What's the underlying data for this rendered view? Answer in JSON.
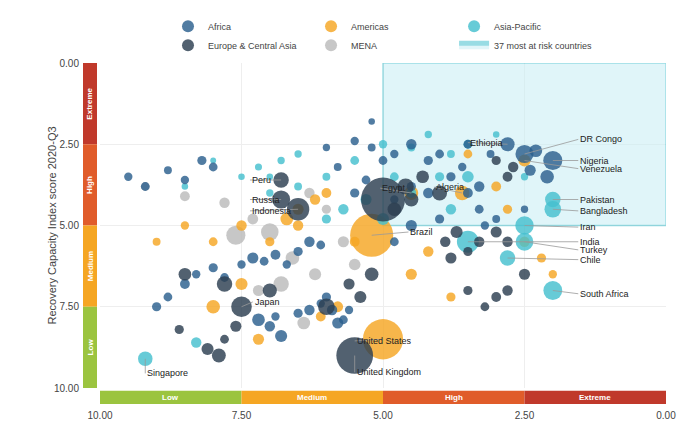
{
  "chart_data": {
    "type": "scatter",
    "ylabel": "Recovery Capacity Index score 2020-Q3",
    "xlim": [
      10.0,
      0.0
    ],
    "ylim": [
      10.0,
      0.0
    ],
    "xticks": [
      {
        "value": 10,
        "label": "10.00"
      },
      {
        "value": 7.5,
        "label": "7.50"
      },
      {
        "value": 5.0,
        "label": "5.00"
      },
      {
        "value": 2.5,
        "label": "2.50"
      },
      {
        "value": 0.0,
        "label": "0.00"
      }
    ],
    "yticks": [
      {
        "value": 0.0,
        "label": "0.00"
      },
      {
        "value": 2.5,
        "label": "2.50"
      },
      {
        "value": 5.0,
        "label": "5.00"
      },
      {
        "value": 7.5,
        "label": "7.50"
      },
      {
        "value": 10.0,
        "label": "10.00"
      }
    ],
    "grid": true,
    "legend": "top",
    "series": [
      {
        "name": "MENA",
        "color": "#BBBBBB",
        "x": [
          7.6,
          7.0,
          6.8,
          6.6,
          6.2,
          6.4,
          7.2,
          6.3,
          6.0,
          5.7,
          5.5,
          9.2,
          8.5,
          7.8,
          7.3
        ],
        "y": [
          5.3,
          5.2,
          6.8,
          6.0,
          6.5,
          8.0,
          7.0,
          4.0,
          4.5,
          5.5,
          6.2,
          3.8,
          4.1,
          4.3,
          4.8
        ],
        "sizes": [
          95,
          80,
          62,
          48,
          38,
          42,
          32,
          28,
          22,
          32,
          35,
          20,
          25,
          28,
          30
        ]
      },
      {
        "name": "Americas",
        "color": "#F5A623",
        "x": [
          5.0,
          5.2,
          6.7,
          6.5,
          6.2,
          6.0,
          7.5,
          7.2,
          8.0,
          6.1,
          5.8,
          2.5,
          3.6,
          4.5,
          3.5,
          4.2,
          3.8,
          4.5,
          5.5,
          6.5,
          7.0,
          7.5,
          8.0,
          8.5,
          9.0,
          3.0,
          2.8,
          2.5,
          2.2,
          2.0
        ],
        "y": [
          8.5,
          5.3,
          4.8,
          4.5,
          4.2,
          4.0,
          6.8,
          8.5,
          7.5,
          7.8,
          7.5,
          3.0,
          4.0,
          4.0,
          2.8,
          5.8,
          7.2,
          6.5,
          5.5,
          5.0,
          5.5,
          5.0,
          5.5,
          5.0,
          5.5,
          3.8,
          4.5,
          5.5,
          6.0,
          6.5
        ],
        "sizes": [
          420,
          480,
          42,
          32,
          28,
          25,
          38,
          32,
          48,
          25,
          30,
          38,
          55,
          50,
          20,
          28,
          22,
          32,
          25,
          28,
          22,
          28,
          20,
          18,
          16,
          25,
          22,
          28,
          22,
          18
        ]
      },
      {
        "name": "Asia-Pacific",
        "color": "#45C0CE",
        "x": [
          9.2,
          8.3,
          2.0,
          2.0,
          2.5,
          3.5,
          2.5,
          2.8,
          2.0,
          3.5,
          3.8,
          4.0,
          4.5,
          4.8,
          5.0,
          5.3,
          5.7,
          6.0,
          6.5,
          7.0,
          7.5,
          8.0,
          8.5,
          7.2,
          6.8,
          3.5,
          3.8,
          4.2,
          4.5,
          5.0,
          5.5,
          6.0,
          6.5,
          7.0,
          3.0,
          2.5
        ],
        "y": [
          9.1,
          8.6,
          4.2,
          4.5,
          5.0,
          5.5,
          5.5,
          6.0,
          7.0,
          3.5,
          4.5,
          3.5,
          4.0,
          3.5,
          4.8,
          4.2,
          4.5,
          4.8,
          3.8,
          4.0,
          3.5,
          3.0,
          3.8,
          3.2,
          3.0,
          2.5,
          2.8,
          2.2,
          2.6,
          2.5,
          3.0,
          3.5,
          2.8,
          3.5,
          2.2,
          3.5
        ],
        "sizes": [
          55,
          28,
          62,
          72,
          88,
          125,
          82,
          62,
          92,
          35,
          28,
          22,
          25,
          20,
          38,
          32,
          28,
          22,
          16,
          14,
          11,
          9,
          11,
          13,
          14,
          20,
          16,
          14,
          16,
          18,
          20,
          16,
          14,
          11,
          11,
          14
        ]
      },
      {
        "name": "Africa",
        "color": "#2B5F8E",
        "x": [
          7.2,
          7.0,
          6.9,
          6.8,
          6.5,
          6.3,
          6.1,
          6.0,
          5.9,
          5.8,
          5.7,
          5.6,
          9.0,
          8.8,
          8.5,
          8.3,
          8.0,
          7.8,
          7.5,
          7.3,
          7.1,
          6.9,
          6.7,
          6.5,
          6.3,
          6.1,
          9.5,
          9.2,
          8.8,
          8.5,
          8.2,
          8.0,
          2.5,
          2.3,
          2.8,
          2.0,
          2.1,
          2.4,
          3.3,
          3.5,
          3.1,
          3.8,
          3.6,
          4.0,
          4.2,
          4.5,
          4.8,
          5.0,
          5.2,
          5.5,
          4.2,
          4.5,
          4.8,
          5.5,
          5.3,
          5.8,
          6.0,
          5.2,
          3.5,
          3.3,
          4.0,
          4.5,
          4.8,
          3.2,
          3.0,
          2.5
        ],
        "y": [
          7.9,
          8.1,
          7.8,
          8.4,
          7.7,
          7.6,
          7.4,
          7.2,
          7.6,
          8.0,
          7.9,
          7.6,
          7.5,
          7.2,
          6.8,
          6.5,
          6.3,
          6.6,
          6.2,
          6.0,
          6.1,
          5.9,
          6.2,
          5.8,
          5.5,
          5.6,
          3.5,
          3.8,
          3.3,
          3.6,
          3.0,
          3.2,
          2.8,
          2.7,
          2.5,
          3.0,
          3.5,
          3.3,
          3.8,
          2.5,
          2.8,
          3.5,
          3.2,
          2.8,
          3.0,
          2.5,
          2.8,
          3.0,
          2.6,
          2.4,
          4.0,
          3.8,
          4.2,
          4.0,
          3.6,
          3.2,
          2.6,
          1.8,
          4.0,
          4.5,
          4.8,
          5.0,
          5.5,
          5.0,
          4.8,
          4.5
        ],
        "sizes": [
          42,
          28,
          18,
          38,
          22,
          28,
          18,
          22,
          28,
          32,
          20,
          18,
          22,
          20,
          25,
          18,
          22,
          20,
          18,
          32,
          20,
          25,
          18,
          22,
          28,
          20,
          18,
          20,
          16,
          18,
          22,
          20,
          85,
          42,
          52,
          95,
          48,
          32,
          28,
          20,
          16,
          22,
          18,
          20,
          22,
          28,
          18,
          20,
          16,
          18,
          28,
          22,
          18,
          22,
          20,
          16,
          14,
          11,
          25,
          20,
          22,
          32,
          20,
          18,
          16,
          14
        ]
      },
      {
        "name": "Europe & Central Asia",
        "color": "#2C3E50",
        "x": [
          8.6,
          8.1,
          7.9,
          7.8,
          7.6,
          7.5,
          5.0,
          5.5,
          6.5,
          6.8,
          6.8,
          6.0,
          7.0,
          7.8,
          8.5,
          5.6,
          5.4,
          5.2,
          4.8,
          4.6,
          4.5,
          4.3,
          4.0,
          3.9,
          3.8,
          3.7,
          3.5,
          3.3,
          3.0,
          2.8,
          3.5,
          3.2,
          3.0,
          2.8,
          2.5,
          3.0,
          2.8,
          2.7
        ],
        "y": [
          8.2,
          8.8,
          9.0,
          8.5,
          8.1,
          7.5,
          4.2,
          9.0,
          4.5,
          4.2,
          3.6,
          7.5,
          7.0,
          6.8,
          6.5,
          6.8,
          7.2,
          6.5,
          4.5,
          3.8,
          4.2,
          3.5,
          4.0,
          5.5,
          6.0,
          5.2,
          5.8,
          5.5,
          5.2,
          5.5,
          7.0,
          7.5,
          7.2,
          7.0,
          6.5,
          3.0,
          3.5,
          3.2
        ],
        "sizes": [
          22,
          38,
          50,
          20,
          32,
          110,
          500,
          350,
          130,
          85,
          62,
          72,
          52,
          62,
          42,
          32,
          38,
          48,
          48,
          68,
          52,
          42,
          58,
          28,
          32,
          38,
          22,
          28,
          32,
          28,
          22,
          20,
          25,
          28,
          32,
          22,
          25,
          28
        ]
      }
    ],
    "highlight": {
      "label": "37 most at risk countries",
      "xlim": [
        5.0,
        0.0
      ],
      "ylim": [
        0.0,
        5.0
      ],
      "color": "#45C0CE",
      "fill_color": "#C8EEF5"
    },
    "x_bands": [
      {
        "range": [
          10.0,
          7.5
        ],
        "color": "#9BC43F",
        "label": "Low"
      },
      {
        "range": [
          7.5,
          5.0
        ],
        "color": "#F5A623",
        "label": "Medium"
      },
      {
        "range": [
          5.0,
          2.5
        ],
        "color": "#E05C2A",
        "label": "High"
      },
      {
        "range": [
          2.5,
          0.0
        ],
        "color": "#C0392B",
        "label": "Extreme"
      }
    ],
    "y_bands": [
      {
        "range": [
          0.0,
          2.5
        ],
        "color": "#C0392B",
        "label": "Extreme"
      },
      {
        "range": [
          2.5,
          5.0
        ],
        "color": "#E05C2A",
        "label": "High"
      },
      {
        "range": [
          5.0,
          7.5
        ],
        "color": "#F5A623",
        "label": "Medium"
      },
      {
        "range": [
          7.5,
          10.0
        ],
        "color": "#9BC43F",
        "label": "Low"
      }
    ],
    "annotations": [
      {
        "text": "Peru",
        "x": 6.8,
        "y": 3.6,
        "text_x": 7.35,
        "text_y": 3.6
      },
      {
        "text": "Russia",
        "x": 6.8,
        "y": 4.2,
        "text_x": 7.35,
        "text_y": 4.2
      },
      {
        "text": "Indonesia",
        "x": 6.5,
        "y": 4.5,
        "text_x": 7.35,
        "text_y": 4.55
      },
      {
        "text": "Egypt",
        "x": 4.5,
        "y": 4.0,
        "text_x": 5.05,
        "text_y": 3.85
      },
      {
        "text": "Algeria",
        "x": 3.6,
        "y": 4.0,
        "text_x": 4.1,
        "text_y": 3.82
      },
      {
        "text": "Ethiopia",
        "x": 2.8,
        "y": 2.5,
        "text_x": 3.5,
        "text_y": 2.45
      },
      {
        "text": "Brazil",
        "x": 5.2,
        "y": 5.3,
        "text_x": 4.55,
        "text_y": 5.2
      },
      {
        "text": "United States",
        "x": 5.0,
        "y": 8.5,
        "text_x": 5.5,
        "text_y": 8.55
      },
      {
        "text": "United Kingdom",
        "x": 5.5,
        "y": 9.0,
        "text_x": 5.5,
        "text_y": 9.52
      },
      {
        "text": "Japan",
        "x": 7.5,
        "y": 7.5,
        "text_x": 7.3,
        "text_y": 7.35
      },
      {
        "text": "Singapore",
        "x": 9.2,
        "y": 9.1,
        "text_x": 9.2,
        "text_y": 9.55
      },
      {
        "text": "DR Congo",
        "x": 2.5,
        "y": 2.8,
        "text_x": 1.55,
        "text_y": 2.35
      },
      {
        "text": "Nigeria",
        "x": 2.0,
        "y": 3.0,
        "text_x": 1.55,
        "text_y": 3.0
      },
      {
        "text": "Venezuela",
        "x": 2.5,
        "y": 3.0,
        "text_x": 1.55,
        "text_y": 3.25
      },
      {
        "text": "Pakistan",
        "x": 2.0,
        "y": 4.2,
        "text_x": 1.55,
        "text_y": 4.2
      },
      {
        "text": "Bangladesh",
        "x": 2.0,
        "y": 4.5,
        "text_x": 1.55,
        "text_y": 4.55
      },
      {
        "text": "Iran",
        "x": 2.5,
        "y": 5.0,
        "text_x": 1.55,
        "text_y": 5.05
      },
      {
        "text": "India",
        "x": 3.5,
        "y": 5.5,
        "text_x": 1.55,
        "text_y": 5.5
      },
      {
        "text": "Turkey",
        "x": 2.5,
        "y": 5.5,
        "text_x": 1.55,
        "text_y": 5.75
      },
      {
        "text": "Chile",
        "x": 2.8,
        "y": 6.0,
        "text_x": 1.55,
        "text_y": 6.05
      },
      {
        "text": "South Africa",
        "x": 2.0,
        "y": 7.0,
        "text_x": 1.55,
        "text_y": 7.1
      }
    ]
  }
}
